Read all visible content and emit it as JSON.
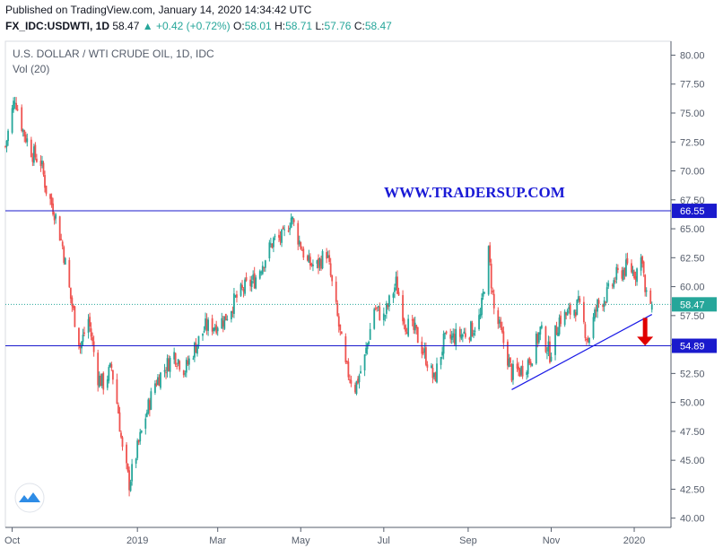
{
  "header": {
    "published": "Published on TradingView.com, January 14, 2020 14:34:42 UTC",
    "symbol": "FX_IDC:USDWTI, 1D",
    "last": "58.47",
    "change": "▲ +0.42 (+0.72%)",
    "o_label": "O:",
    "o_value": "58.01",
    "h_label": "H:",
    "h_value": "58.71",
    "l_label": "L:",
    "l_value": "57.76",
    "c_label": "C:",
    "c_value": "58.47"
  },
  "colors": {
    "up": "#26a69a",
    "down": "#ef5350",
    "hline": "#1a1acd",
    "trend": "#1a1ae6",
    "arrow": "#e00000",
    "tag_bg": "#1a1acd",
    "last_tag_bg": "#26a69a"
  },
  "chart_data": {
    "type": "candlestick",
    "title": "U.S. DOLLAR / WTI CRUDE OIL, 1D, IDC",
    "subtitle": "Vol (20)",
    "watermark": "WWW.TRADERSUP.COM",
    "ylim": [
      39.2,
      81.2
    ],
    "ytick_values": [
      40,
      42.5,
      45,
      47.5,
      50,
      52.5,
      55,
      57.5,
      60,
      62.5,
      65,
      67.5,
      70,
      72.5,
      75,
      77.5,
      80
    ],
    "ytick_labels": [
      "40.00",
      "42.50",
      "45.00",
      "47.50",
      "50.00",
      "52.50",
      "55.00",
      "57.50",
      "60.00",
      "62.50",
      "65.00",
      "67.50",
      "70.00",
      "72.50",
      "75.00",
      "77.50",
      "80.00"
    ],
    "x_labels": [
      "Oct",
      "2019",
      "Mar",
      "May",
      "Jul",
      "Sep",
      "Nov",
      "2020"
    ],
    "x_label_dates": [
      "2018-10-01",
      "2019-01-01",
      "2019-03-01",
      "2019-05-01",
      "2019-07-01",
      "2019-09-01",
      "2019-11-01",
      "2020-01-01"
    ],
    "xlim": [
      "2018-09-26",
      "2020-01-28"
    ],
    "horizontal_levels": [
      {
        "value": 66.55,
        "label": "66.55"
      },
      {
        "value": 54.89,
        "label": "54.89"
      }
    ],
    "last_price": {
      "value": 58.47,
      "label": "58.47"
    },
    "trendline": {
      "start": {
        "date": "2019-10-03",
        "value": 51.1
      },
      "end": {
        "date": "2020-01-14",
        "value": 57.6
      }
    },
    "arrow": {
      "date": "2020-01-09",
      "from": 57.3,
      "to": 54.9
    },
    "close_path": [
      [
        "2018-09-26",
        72.1
      ],
      [
        "2018-10-03",
        76.4
      ],
      [
        "2018-10-09",
        73.5
      ],
      [
        "2018-10-16",
        71.5
      ],
      [
        "2018-10-22",
        70.8
      ],
      [
        "2018-10-26",
        68.4
      ],
      [
        "2018-11-01",
        66.5
      ],
      [
        "2018-11-07",
        63.5
      ],
      [
        "2018-11-13",
        59.0
      ],
      [
        "2018-11-20",
        54.8
      ],
      [
        "2018-11-26",
        57.2
      ],
      [
        "2018-12-03",
        52.2
      ],
      [
        "2018-12-07",
        51.6
      ],
      [
        "2018-12-13",
        53.0
      ],
      [
        "2018-12-18",
        49.2
      ],
      [
        "2018-12-21",
        45.8
      ],
      [
        "2018-12-26",
        43.0
      ],
      [
        "2018-12-31",
        45.5
      ],
      [
        "2019-01-07",
        48.8
      ],
      [
        "2019-01-14",
        51.7
      ],
      [
        "2019-01-21",
        52.9
      ],
      [
        "2019-01-28",
        54.2
      ],
      [
        "2019-02-05",
        52.8
      ],
      [
        "2019-02-12",
        54.7
      ],
      [
        "2019-02-20",
        56.5
      ],
      [
        "2019-02-27",
        56.7
      ],
      [
        "2019-03-06",
        57.2
      ],
      [
        "2019-03-14",
        58.9
      ],
      [
        "2019-03-21",
        59.9
      ],
      [
        "2019-03-28",
        60.6
      ],
      [
        "2019-04-04",
        62.3
      ],
      [
        "2019-04-11",
        64.0
      ],
      [
        "2019-04-18",
        64.2
      ],
      [
        "2019-04-24",
        66.0
      ],
      [
        "2019-04-30",
        63.9
      ],
      [
        "2019-05-06",
        62.0
      ],
      [
        "2019-05-13",
        61.8
      ],
      [
        "2019-05-20",
        63.0
      ],
      [
        "2019-05-27",
        58.0
      ],
      [
        "2019-06-03",
        53.0
      ],
      [
        "2019-06-10",
        51.3
      ],
      [
        "2019-06-17",
        53.8
      ],
      [
        "2019-06-24",
        58.2
      ],
      [
        "2019-07-01",
        57.3
      ],
      [
        "2019-07-10",
        60.3
      ],
      [
        "2019-07-17",
        56.8
      ],
      [
        "2019-07-24",
        56.1
      ],
      [
        "2019-08-01",
        53.9
      ],
      [
        "2019-08-07",
        51.9
      ],
      [
        "2019-08-14",
        55.2
      ],
      [
        "2019-08-21",
        55.6
      ],
      [
        "2019-08-28",
        55.9
      ],
      [
        "2019-09-04",
        56.3
      ],
      [
        "2019-09-10",
        57.4
      ],
      [
        "2019-09-16",
        62.9
      ],
      [
        "2019-09-20",
        58.0
      ],
      [
        "2019-09-27",
        55.2
      ],
      [
        "2019-10-03",
        52.5
      ],
      [
        "2019-10-10",
        52.8
      ],
      [
        "2019-10-17",
        53.8
      ],
      [
        "2019-10-24",
        56.2
      ],
      [
        "2019-10-31",
        54.2
      ],
      [
        "2019-11-07",
        57.2
      ],
      [
        "2019-11-14",
        57.7
      ],
      [
        "2019-11-21",
        58.4
      ],
      [
        "2019-11-28",
        55.4
      ],
      [
        "2019-12-05",
        58.4
      ],
      [
        "2019-12-12",
        59.3
      ],
      [
        "2019-12-19",
        60.9
      ],
      [
        "2019-12-27",
        61.7
      ],
      [
        "2020-01-02",
        61.2
      ],
      [
        "2020-01-07",
        62.7
      ],
      [
        "2020-01-09",
        59.3
      ],
      [
        "2020-01-14",
        58.47
      ]
    ]
  }
}
